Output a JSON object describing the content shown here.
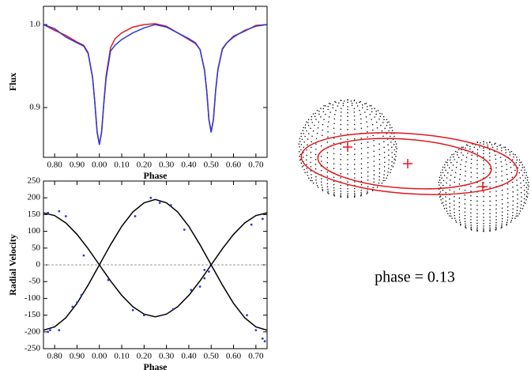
{
  "chart_data": [
    {
      "type": "line",
      "ylabel": "Flux",
      "xlabel": "Phase",
      "xlim": [
        0.75,
        1.75
      ],
      "ylim": [
        0.84,
        1.022
      ],
      "xticks": [
        {
          "value": 0.8,
          "label": "0.80"
        },
        {
          "value": 0.9,
          "label": "0.90"
        },
        {
          "value": 1.0,
          "label": "0.00"
        },
        {
          "value": 1.1,
          "label": "0.10"
        },
        {
          "value": 1.2,
          "label": "0.20"
        },
        {
          "value": 1.3,
          "label": "0.30"
        },
        {
          "value": 1.4,
          "label": "0.40"
        },
        {
          "value": 1.5,
          "label": "0.50"
        },
        {
          "value": 1.6,
          "label": "0.60"
        },
        {
          "value": 1.7,
          "label": "0.70"
        }
      ],
      "yticks": [
        0.9,
        {
          "value": 1,
          "label": "1.0"
        }
      ],
      "series": [
        {
          "type": "line",
          "color": "#e0191e",
          "x": [
            0.75,
            0.8,
            0.85,
            0.9,
            0.93,
            0.95,
            0.97,
            0.98,
            0.99,
            1.0,
            1.01,
            1.02,
            1.03,
            1.05,
            1.07,
            1.1,
            1.15,
            1.2,
            1.25,
            1.3,
            1.35,
            1.4,
            1.43,
            1.45,
            1.47,
            1.48,
            1.49,
            1.5,
            1.51,
            1.52,
            1.53,
            1.55,
            1.57,
            1.6,
            1.65,
            1.7,
            1.75
          ],
          "values": [
            1.0,
            0.993,
            0.987,
            0.979,
            0.975,
            0.966,
            0.936,
            0.905,
            0.871,
            0.856,
            0.871,
            0.906,
            0.938,
            0.972,
            0.983,
            0.99,
            0.997,
            1.0,
            1.001,
            0.998,
            0.99,
            0.982,
            0.977,
            0.97,
            0.946,
            0.921,
            0.886,
            0.871,
            0.886,
            0.921,
            0.946,
            0.971,
            0.978,
            0.986,
            0.992,
            0.999,
            1.0
          ]
        },
        {
          "type": "line",
          "color": "#2b3bd6",
          "x": [
            0.75,
            0.8,
            0.85,
            0.9,
            0.93,
            0.95,
            0.97,
            0.98,
            0.99,
            1.0,
            1.01,
            1.02,
            1.03,
            1.05,
            1.07,
            1.1,
            1.15,
            1.2,
            1.25,
            1.3,
            1.35,
            1.4,
            1.43,
            1.45,
            1.47,
            1.48,
            1.49,
            1.5,
            1.51,
            1.52,
            1.53,
            1.55,
            1.57,
            1.6,
            1.65,
            1.7,
            1.75
          ],
          "values": [
            1.0,
            0.995,
            0.985,
            0.978,
            0.974,
            0.965,
            0.935,
            0.905,
            0.87,
            0.855,
            0.87,
            0.905,
            0.935,
            0.968,
            0.975,
            0.982,
            0.99,
            0.996,
            1.0,
            0.997,
            0.99,
            0.983,
            0.978,
            0.97,
            0.945,
            0.92,
            0.885,
            0.87,
            0.885,
            0.92,
            0.945,
            0.97,
            0.978,
            0.985,
            0.993,
            0.998,
            1.0
          ]
        }
      ]
    },
    {
      "type": "line",
      "ylabel": "Radial Velocity",
      "xlabel": "Phase",
      "xlim": [
        0.75,
        1.75
      ],
      "ylim": [
        -250,
        250
      ],
      "zero_line": true,
      "xticks": [
        {
          "value": 0.8,
          "label": "0.80"
        },
        {
          "value": 0.9,
          "label": "0.90"
        },
        {
          "value": 1.0,
          "label": "0.00"
        },
        {
          "value": 1.1,
          "label": "0.10"
        },
        {
          "value": 1.2,
          "label": "0.20"
        },
        {
          "value": 1.3,
          "label": "0.30"
        },
        {
          "value": 1.4,
          "label": "0.40"
        },
        {
          "value": 1.5,
          "label": "0.50"
        },
        {
          "value": 1.6,
          "label": "0.60"
        },
        {
          "value": 1.7,
          "label": "0.70"
        }
      ],
      "yticks": [
        -250,
        -200,
        -150,
        -100,
        -50,
        0,
        50,
        100,
        150,
        200,
        250
      ],
      "series": [
        {
          "type": "line",
          "color": "#000000",
          "x": [
            0.75,
            0.8,
            0.85,
            0.9,
            0.95,
            1.0,
            1.05,
            1.1,
            1.15,
            1.2,
            1.25,
            1.3,
            1.35,
            1.4,
            1.45,
            1.5,
            1.55,
            1.6,
            1.65,
            1.7,
            1.75
          ],
          "values": [
            155,
            147,
            125,
            91,
            48,
            0,
            -48,
            -91,
            -125,
            -147,
            -155,
            -147,
            -125,
            -91,
            -48,
            0,
            48,
            91,
            125,
            147,
            155
          ]
        },
        {
          "type": "line",
          "color": "#000000",
          "x": [
            0.75,
            0.8,
            0.85,
            0.9,
            0.95,
            1.0,
            1.05,
            1.1,
            1.15,
            1.2,
            1.25,
            1.3,
            1.35,
            1.4,
            1.45,
            1.5,
            1.55,
            1.6,
            1.65,
            1.7,
            1.75
          ],
          "values": [
            -195,
            -185,
            -158,
            -115,
            -60,
            0,
            60,
            115,
            158,
            185,
            195,
            185,
            158,
            115,
            60,
            0,
            -60,
            -115,
            -158,
            -185,
            -195
          ]
        },
        {
          "type": "scatter",
          "color": "#2b3bd6",
          "x": [
            0.77,
            0.82,
            0.85,
            0.93,
            1.04,
            1.15,
            1.2,
            1.33,
            1.41,
            1.47,
            1.68,
            1.73
          ],
          "values": [
            155,
            160,
            145,
            28,
            -45,
            -135,
            -150,
            -132,
            -75,
            -15,
            120,
            137
          ]
        },
        {
          "type": "scatter",
          "color": "#2b3bd6",
          "x": [
            0.77,
            0.78,
            0.82,
            0.88,
            0.9,
            0.92,
            1.16,
            1.23,
            1.27,
            1.32,
            1.38,
            1.45,
            1.47,
            1.49,
            1.66,
            1.7,
            1.73,
            1.74
          ],
          "values": [
            -200,
            -195,
            -195,
            -125,
            -112,
            -90,
            145,
            200,
            185,
            178,
            105,
            -65,
            -40,
            -20,
            -150,
            -195,
            -220,
            -228
          ]
        }
      ]
    }
  ],
  "diagram": {
    "label": "phase = 0.13"
  }
}
